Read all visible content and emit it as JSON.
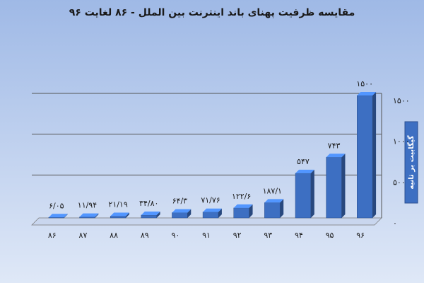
{
  "chart_data": {
    "type": "bar",
    "title": "مقایسه ظرفیت پهنای باند اینترنت بین الملل - ۸۶ لغایت ۹۶",
    "y_axis_label": "گیگابیت بر ثانیه",
    "categories": [
      "۸۶",
      "۸۷",
      "۸۸",
      "۸۹",
      "۹۰",
      "۹۱",
      "۹۲",
      "۹۳",
      "۹۴",
      "۹۵",
      "۹۶"
    ],
    "values": [
      6.05,
      11.94,
      21.19,
      34.8,
      64.3,
      71.76,
      122.6,
      187.1,
      547,
      743,
      1500
    ],
    "value_labels": [
      "۶/۰۵",
      "۱۱/۹۴",
      "۲۱/۱۹",
      "۳۴/۸۰",
      "۶۴/۳",
      "۷۱/۷۶",
      "۱۲۲/۶",
      "۱۸۷/۱",
      "۵۴۷",
      "۷۴۳",
      "۱۵۰۰"
    ],
    "color": "#3d6fc2",
    "ylim": [
      0,
      1500
    ],
    "yticks": [
      {
        "value": 0,
        "label": "۰"
      },
      {
        "value": 500,
        "label": "۵۰۰"
      },
      {
        "value": 1000,
        "label": "۱۰۰۰"
      },
      {
        "value": 1500,
        "label": "۱۵۰۰"
      }
    ],
    "grid": true
  }
}
